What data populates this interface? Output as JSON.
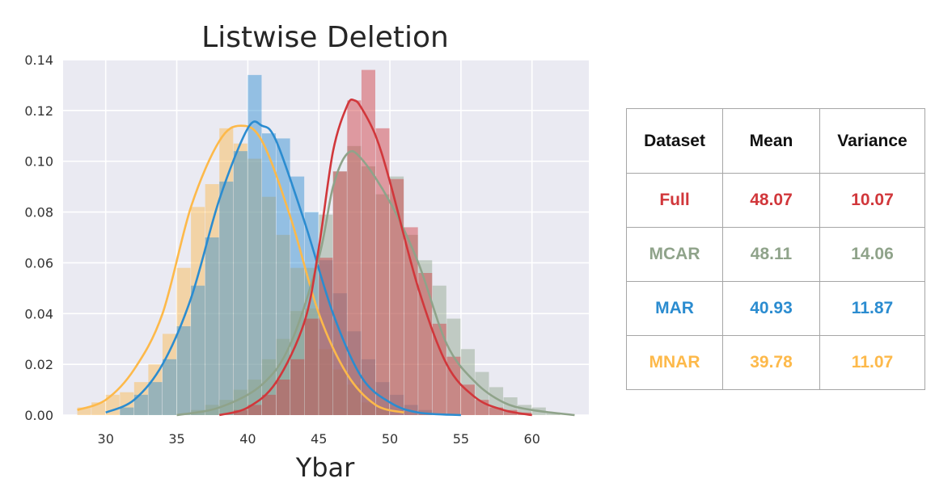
{
  "chart_data": {
    "type": "histogram-kde",
    "title": "Listwise Deletion",
    "xlabel": "Ybar",
    "ylabel": "",
    "xlim": [
      27,
      64
    ],
    "ylim": [
      0,
      0.14
    ],
    "xticks": [
      30,
      35,
      40,
      45,
      50,
      55,
      60
    ],
    "yticks": [
      0.0,
      0.02,
      0.04,
      0.06,
      0.08,
      0.1,
      0.12,
      0.14
    ],
    "ytick_labels": [
      "0.00",
      "0.02",
      "0.04",
      "0.06",
      "0.08",
      "0.10",
      "0.12",
      "0.14"
    ],
    "grid": true,
    "background": "#eaeaf2",
    "series": [
      {
        "name": "MNAR",
        "color": "#fdb94a",
        "bin_width": 1,
        "hist_x": [
          28,
          29,
          30,
          31,
          32,
          33,
          34,
          35,
          36,
          37,
          38,
          39,
          40,
          41,
          42,
          43,
          44,
          45,
          46,
          47,
          48,
          49
        ],
        "hist_y": [
          0.003,
          0.005,
          0.008,
          0.009,
          0.013,
          0.02,
          0.032,
          0.058,
          0.082,
          0.091,
          0.113,
          0.107,
          0.101,
          0.086,
          0.071,
          0.058,
          0.042,
          0.026,
          0.018,
          0.012,
          0.005,
          0.003
        ],
        "kde_x": [
          28,
          30,
          32,
          34,
          36,
          38,
          39.5,
          41,
          43,
          45,
          47,
          49,
          51
        ],
        "kde_y": [
          0.002,
          0.006,
          0.018,
          0.04,
          0.082,
          0.108,
          0.114,
          0.108,
          0.078,
          0.04,
          0.016,
          0.004,
          0.001
        ]
      },
      {
        "name": "MAR",
        "color": "#2b8cd0",
        "bin_width": 1,
        "hist_x": [
          31,
          32,
          33,
          34,
          35,
          36,
          37,
          38,
          39,
          40,
          41,
          42,
          43,
          44,
          45,
          46,
          47,
          48,
          49,
          50,
          51,
          52
        ],
        "hist_y": [
          0.003,
          0.008,
          0.013,
          0.022,
          0.035,
          0.051,
          0.07,
          0.092,
          0.104,
          0.134,
          0.111,
          0.109,
          0.094,
          0.08,
          0.061,
          0.048,
          0.033,
          0.022,
          0.013,
          0.008,
          0.004,
          0.002
        ],
        "kde_x": [
          30,
          32,
          34,
          36,
          38,
          40,
          41,
          42,
          44,
          46,
          48,
          50,
          52,
          55
        ],
        "kde_y": [
          0.001,
          0.006,
          0.02,
          0.046,
          0.085,
          0.113,
          0.114,
          0.108,
          0.076,
          0.04,
          0.015,
          0.005,
          0.001,
          0.0
        ]
      },
      {
        "name": "MCAR",
        "color": "#8fa38a",
        "bin_width": 1,
        "hist_x": [
          36,
          37,
          38,
          39,
          40,
          41,
          42,
          43,
          44,
          45,
          46,
          47,
          48,
          49,
          50,
          51,
          52,
          53,
          54,
          55,
          56,
          57,
          58,
          59,
          60,
          61
        ],
        "hist_y": [
          0.002,
          0.004,
          0.006,
          0.01,
          0.014,
          0.022,
          0.03,
          0.041,
          0.058,
          0.079,
          0.096,
          0.106,
          0.098,
          0.087,
          0.094,
          0.071,
          0.061,
          0.051,
          0.038,
          0.026,
          0.017,
          0.011,
          0.007,
          0.004,
          0.003,
          0.001
        ],
        "kde_x": [
          35,
          38,
          41,
          43,
          45,
          46,
          47,
          48,
          50,
          52,
          54,
          56,
          58,
          60,
          63
        ],
        "kde_y": [
          0.0,
          0.003,
          0.012,
          0.028,
          0.062,
          0.09,
          0.103,
          0.101,
          0.084,
          0.06,
          0.028,
          0.013,
          0.005,
          0.002,
          0.0
        ]
      },
      {
        "name": "Full",
        "color": "#d1373b",
        "bin_width": 1,
        "hist_x": [
          39,
          40,
          41,
          42,
          43,
          44,
          45,
          46,
          47,
          48,
          49,
          50,
          51,
          52,
          53,
          54,
          55,
          56,
          57,
          58,
          59
        ],
        "hist_y": [
          0.002,
          0.004,
          0.008,
          0.014,
          0.022,
          0.038,
          0.062,
          0.096,
          0.124,
          0.136,
          0.113,
          0.093,
          0.074,
          0.056,
          0.036,
          0.023,
          0.012,
          0.006,
          0.003,
          0.002,
          0.001
        ],
        "kde_x": [
          38,
          40,
          42,
          44,
          45,
          46,
          47,
          47.5,
          48,
          49,
          50,
          52,
          54,
          56,
          58,
          60
        ],
        "kde_y": [
          0.0,
          0.003,
          0.013,
          0.037,
          0.066,
          0.104,
          0.122,
          0.124,
          0.121,
          0.11,
          0.092,
          0.05,
          0.02,
          0.007,
          0.002,
          0.0
        ]
      }
    ]
  },
  "table": {
    "headers": [
      "Dataset",
      "Mean",
      "Variance"
    ],
    "rows": [
      {
        "dataset": "Full",
        "mean": "48.07",
        "variance": "10.07",
        "color": "#d1373b"
      },
      {
        "dataset": "MCAR",
        "mean": "48.11",
        "variance": "14.06",
        "color": "#8fa38a"
      },
      {
        "dataset": "MAR",
        "mean": "40.93",
        "variance": "11.87",
        "color": "#2b8cd0"
      },
      {
        "dataset": "MNAR",
        "mean": "39.78",
        "variance": "11.07",
        "color": "#fdb94a"
      }
    ]
  }
}
